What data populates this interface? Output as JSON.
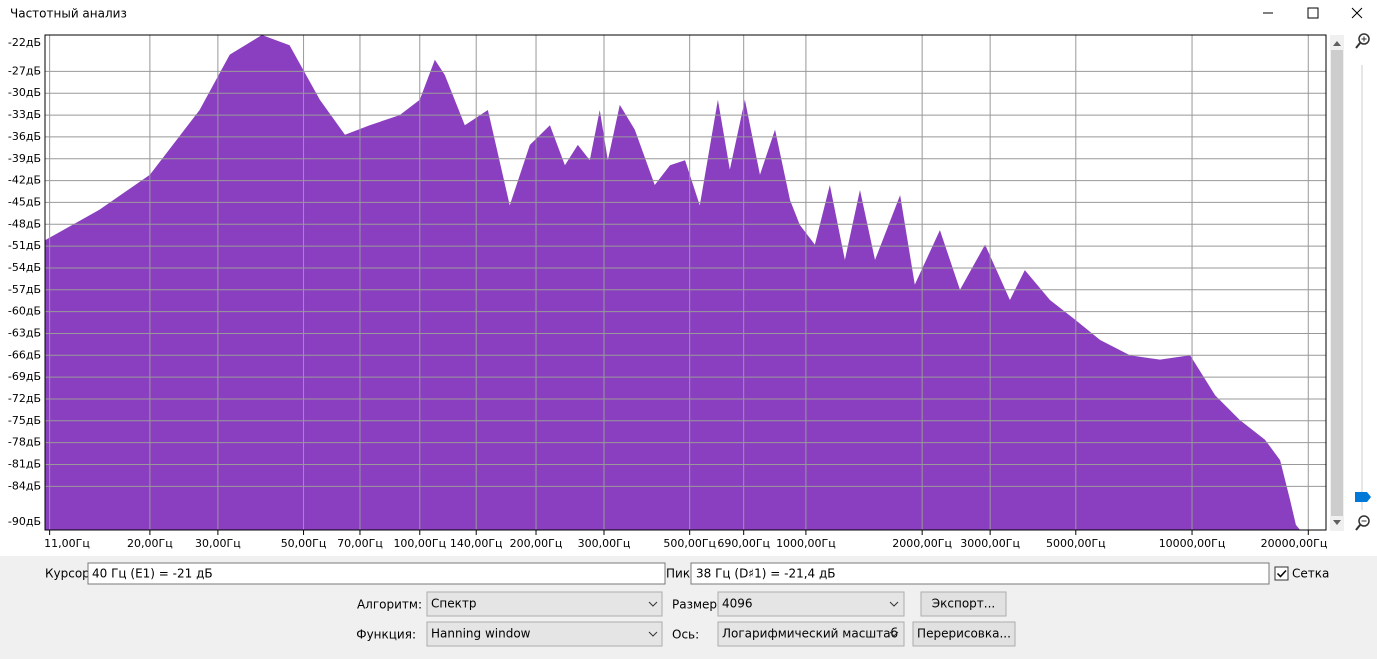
{
  "window": {
    "title": "Частотный анализ"
  },
  "chart_data": {
    "type": "area",
    "color": "#8a3fc0",
    "x_scale": "log",
    "grid": true,
    "x": [
      10.7,
      14.8,
      20.0,
      26.9,
      32.2,
      39.0,
      46.0,
      55.1,
      64.0,
      74.2,
      88.7,
      100,
      109.4,
      116.1,
      130.8,
      150.1,
      171.0,
      192.8,
      217.3,
      237.6,
      256.6,
      275.6,
      292.5,
      306.9,
      329.6,
      360.4,
      406.0,
      444.6,
      486.4,
      531.1,
      591.6,
      635.3,
      695.0,
      760.3,
      831.8,
      909.9,
      964.6,
      1054.8,
      1153.5,
      1261.6,
      1380.4,
      1510.1,
      1753.9,
      1914.2,
      2223.4,
      2506.2,
      2910.8,
      3375.6,
      3689.7,
      4285.5,
      4977.5,
      5781.0,
      6902.4,
      8260.4,
      9885.7,
      11481.5,
      13304.2,
      15451.8,
      16904.4,
      17947.9,
      18578,
      19054.6
    ],
    "values": [
      -50.2,
      -46.0,
      -41.2,
      -32.3,
      -24.7,
      -22.0,
      -23.4,
      -30.9,
      -35.7,
      -34.4,
      -33.0,
      -30.9,
      -25.4,
      -27.5,
      -34.4,
      -32.3,
      -45.4,
      -37.1,
      -34.4,
      -39.9,
      -37.1,
      -39.2,
      -32.3,
      -39.2,
      -31.6,
      -35.0,
      -42.6,
      -39.9,
      -39.2,
      -45.4,
      -30.9,
      -40.5,
      -30.9,
      -41.2,
      -35.0,
      -44.7,
      -48.1,
      -50.8,
      -42.6,
      -52.9,
      -43.3,
      -52.9,
      -44.0,
      -56.3,
      -48.8,
      -57.0,
      -50.8,
      -58.4,
      -54.3,
      -58.4,
      -61.1,
      -63.9,
      -66.0,
      -66.6,
      -66.0,
      -71.5,
      -74.9,
      -77.6,
      -80.4,
      -85.9,
      -89.3,
      -90
    ],
    "xlim": [
      10.7,
      22230
    ],
    "ylim": [
      -90,
      -22
    ],
    "xticks": [
      {
        "value": 11,
        "label": "11,00Гц"
      },
      {
        "value": 20,
        "label": "20,00Гц"
      },
      {
        "value": 30,
        "label": "30,00Гц"
      },
      {
        "value": 50,
        "label": "50,00Гц"
      },
      {
        "value": 70,
        "label": "70,00Гц"
      },
      {
        "value": 100,
        "label": "100,00Гц"
      },
      {
        "value": 140,
        "label": "140,00Гц"
      },
      {
        "value": 200,
        "label": "200,00Гц"
      },
      {
        "value": 300,
        "label": "300,00Гц"
      },
      {
        "value": 500,
        "label": "500,00Гц"
      },
      {
        "value": 690,
        "label": "690,00Гц"
      },
      {
        "value": 1000,
        "label": "1000,00Гц"
      },
      {
        "value": 2000,
        "label": "2000,00Гц"
      },
      {
        "value": 3000,
        "label": "3000,00Гц"
      },
      {
        "value": 5000,
        "label": "5000,00Гц"
      },
      {
        "value": 10000,
        "label": "10000,00Гц"
      },
      {
        "value": 20000,
        "label": "20000,00Гц"
      }
    ],
    "yticks": [
      {
        "value": -22,
        "label": "-22дБ"
      },
      {
        "value": -27,
        "label": "-27дБ"
      },
      {
        "value": -30,
        "label": "-30дБ"
      },
      {
        "value": -33,
        "label": "-33дБ"
      },
      {
        "value": -36,
        "label": "-36дБ"
      },
      {
        "value": -39,
        "label": "-39дБ"
      },
      {
        "value": -42,
        "label": "-42дБ"
      },
      {
        "value": -45,
        "label": "-45дБ"
      },
      {
        "value": -48,
        "label": "-48дБ"
      },
      {
        "value": -51,
        "label": "-51дБ"
      },
      {
        "value": -54,
        "label": "-54дБ"
      },
      {
        "value": -57,
        "label": "-57дБ"
      },
      {
        "value": -60,
        "label": "-60дБ"
      },
      {
        "value": -63,
        "label": "-63дБ"
      },
      {
        "value": -66,
        "label": "-66дБ"
      },
      {
        "value": -69,
        "label": "-69дБ"
      },
      {
        "value": -72,
        "label": "-72дБ"
      },
      {
        "value": -75,
        "label": "-75дБ"
      },
      {
        "value": -78,
        "label": "-78дБ"
      },
      {
        "value": -81,
        "label": "-81дБ"
      },
      {
        "value": -84,
        "label": "-84дБ"
      },
      {
        "value": -90,
        "label": "-90дБ"
      }
    ]
  },
  "cursor": {
    "label": "Курсор:",
    "value": "40 Гц (E1) = -21 дБ"
  },
  "peak": {
    "label": "Пик:",
    "value": "38 Гц (D♯1) = -21,4 дБ"
  },
  "grid_checkbox": {
    "label": "Сетка",
    "checked": true
  },
  "algorithm": {
    "label": "Алгоритм:",
    "value": "Спектр"
  },
  "size": {
    "label": "Размер:",
    "value": "4096"
  },
  "export_button": {
    "label": "Экспорт..."
  },
  "function": {
    "label": "Функция:",
    "value": "Hanning window"
  },
  "axis": {
    "label": "Ось:",
    "value": "Логарифмический масштаб"
  },
  "redraw_button": {
    "label": "Перерисовка..."
  }
}
